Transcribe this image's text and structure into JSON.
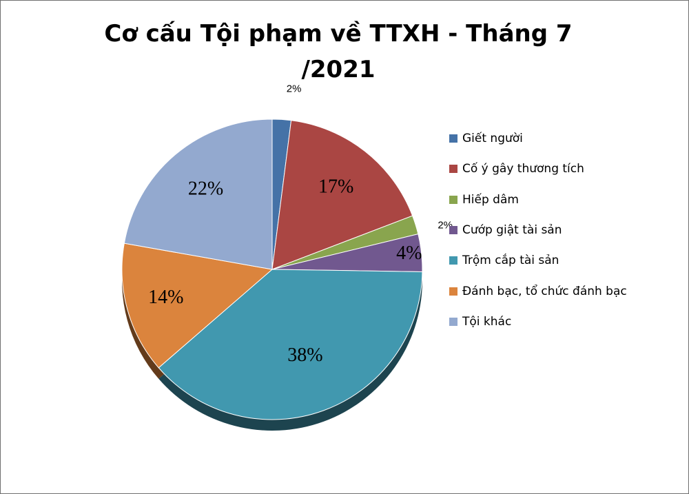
{
  "chart_data": {
    "type": "pie",
    "title_lines": [
      "Cơ cấu Tội phạm về TTXH - Tháng 7",
      "/2021"
    ],
    "categories": [
      "Giết người",
      "Cố ý gây thương tích",
      "Hiếp dâm",
      "Cướp giật tài sản",
      "Trộm cắp tài sản",
      "Đánh bạc, tổ chức đánh bạc",
      "Tội khác"
    ],
    "values": [
      2,
      17,
      2,
      4,
      38,
      14,
      22
    ],
    "labels": [
      "2%",
      "17%",
      "2%",
      "4%",
      "38%",
      "14%",
      "22%"
    ],
    "colors": [
      "#4572a7",
      "#aa4643",
      "#89a54e",
      "#71588f",
      "#4198af",
      "#db843d",
      "#93a9cf"
    ],
    "legend_position": "right"
  }
}
